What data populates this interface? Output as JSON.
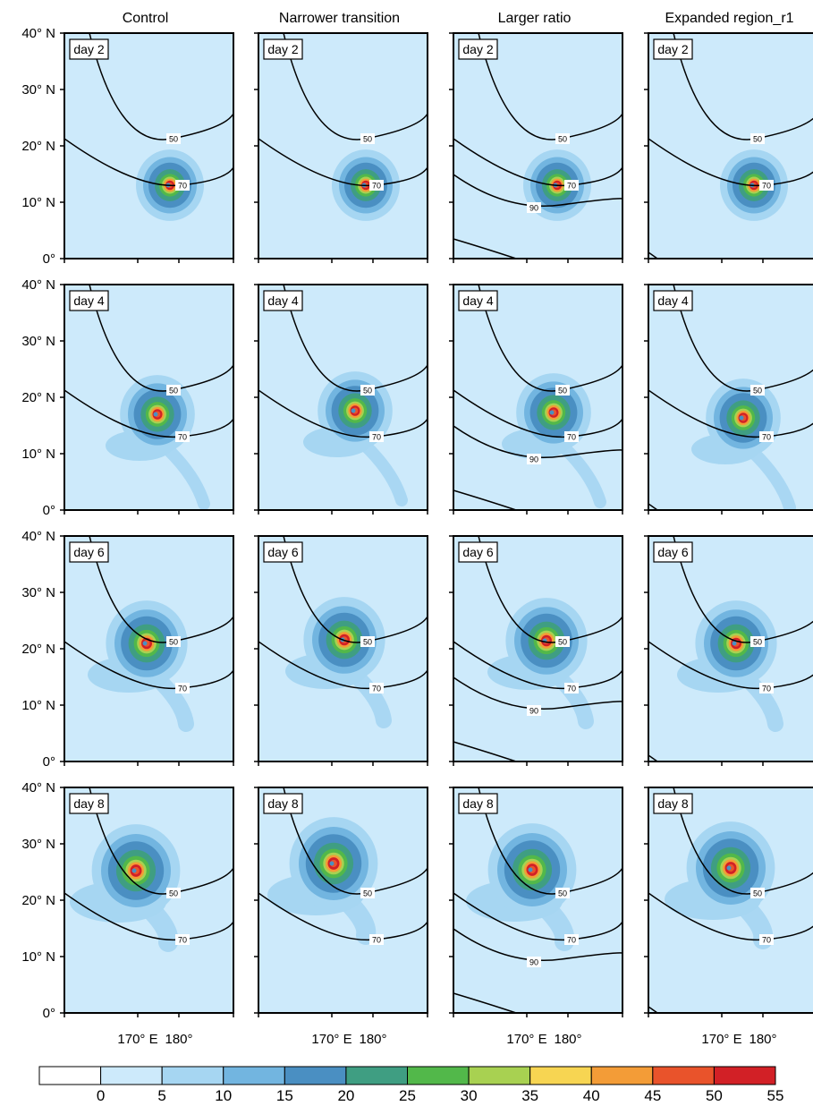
{
  "columns": [
    {
      "title": "Control"
    },
    {
      "title": "Narrower transition"
    },
    {
      "title": "Larger ratio"
    },
    {
      "title": "Expanded region_r1"
    }
  ],
  "rows": [
    {
      "label": "day 2"
    },
    {
      "label": "day 4"
    },
    {
      "label": "day 6"
    },
    {
      "label": "day 8"
    }
  ],
  "y_ticks": [
    "40° N",
    "30° N",
    "20° N",
    "10° N",
    "0°"
  ],
  "x_ticks": [
    "170° E",
    "180°"
  ],
  "colorbar": {
    "ticks": [
      "0",
      "5",
      "10",
      "15",
      "20",
      "25",
      "30",
      "35",
      "40",
      "45",
      "50",
      "55"
    ],
    "colors": [
      "#ffffff",
      "#cdeafb",
      "#a6d6f2",
      "#72b5e0",
      "#4a8fc2",
      "#3f9e82",
      "#52b84a",
      "#a8d151",
      "#f7d552",
      "#f39c37",
      "#e9532b",
      "#d22026"
    ]
  },
  "chart_data": {
    "type": "heatmap",
    "description_units": "filled contours = intensity (colorbar 0-55); black contours labeled 50/70/90",
    "xlim": [
      "~160° E",
      "~195° E"
    ],
    "ylim": [
      0,
      40
    ],
    "panels": [
      {
        "column": "Control",
        "day": 2,
        "center_lat": 13,
        "center_lon": 180,
        "contours": [
          50,
          70
        ]
      },
      {
        "column": "Control",
        "day": 4,
        "center_lat": 17,
        "center_lon": 178,
        "contours": [
          50,
          70
        ]
      },
      {
        "column": "Control",
        "day": 6,
        "center_lat": 21,
        "center_lon": 175,
        "contours": [
          50,
          70
        ]
      },
      {
        "column": "Control",
        "day": 8,
        "center_lat": 24.5,
        "center_lon": 173,
        "contours": [
          50,
          70
        ]
      },
      {
        "column": "Narrower transition",
        "day": 2,
        "center_lat": 13,
        "center_lon": 179,
        "contours": [
          50,
          70
        ]
      },
      {
        "column": "Narrower transition",
        "day": 4,
        "center_lat": 18,
        "center_lon": 177,
        "contours": [
          50,
          70
        ]
      },
      {
        "column": "Narrower transition",
        "day": 6,
        "center_lat": 22,
        "center_lon": 175,
        "contours": [
          50,
          70
        ]
      },
      {
        "column": "Narrower transition",
        "day": 8,
        "center_lat": 25.5,
        "center_lon": 174,
        "contours": [
          50,
          70
        ]
      },
      {
        "column": "Larger ratio",
        "day": 2,
        "center_lat": 13,
        "center_lon": 179,
        "contours": [
          50,
          70,
          90
        ]
      },
      {
        "column": "Larger ratio",
        "day": 4,
        "center_lat": 17.5,
        "center_lon": 178,
        "contours": [
          50,
          70,
          90
        ]
      },
      {
        "column": "Larger ratio",
        "day": 6,
        "center_lat": 21.5,
        "center_lon": 177,
        "contours": [
          50,
          70,
          90
        ]
      },
      {
        "column": "Larger ratio",
        "day": 8,
        "center_lat": 25,
        "center_lon": 176,
        "contours": [
          50,
          70,
          90
        ]
      },
      {
        "column": "Expanded region_r1",
        "day": 2,
        "center_lat": 13,
        "center_lon": 180,
        "contours": [
          50,
          70
        ]
      },
      {
        "column": "Expanded region_r1",
        "day": 4,
        "center_lat": 17,
        "center_lon": 179,
        "contours": [
          50,
          70
        ]
      },
      {
        "column": "Expanded region_r1",
        "day": 6,
        "center_lat": 21,
        "center_lon": 178,
        "contours": [
          50,
          70
        ]
      },
      {
        "column": "Expanded region_r1",
        "day": 8,
        "center_lat": 25,
        "center_lon": 177,
        "contours": [
          50,
          70
        ]
      }
    ]
  }
}
